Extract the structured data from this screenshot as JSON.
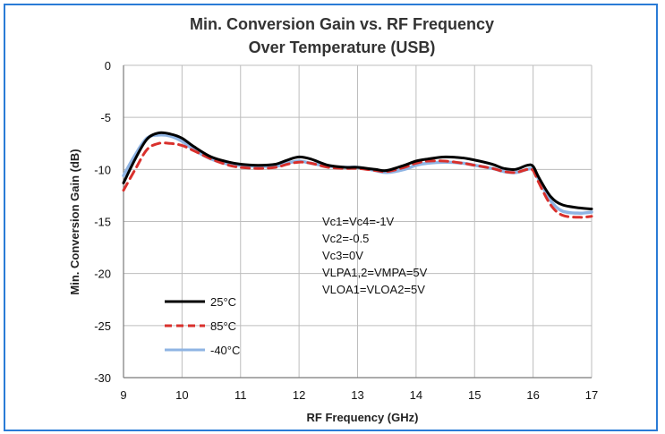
{
  "chart_data": {
    "type": "line",
    "title": [
      "Min. Conversion Gain vs. RF Frequency",
      "Over Temperature (USB)"
    ],
    "xlabel": "RF Frequency (GHz)",
    "ylabel": "Min. Conversion Gain (dB)",
    "xlim": [
      9,
      17
    ],
    "ylim": [
      -30,
      0
    ],
    "xticks": [
      "9",
      "10",
      "11",
      "12",
      "13",
      "14",
      "15",
      "16",
      "17"
    ],
    "yticks": [
      "0",
      "-5",
      "-10",
      "-15",
      "-20",
      "-25",
      "-30"
    ],
    "grid": true,
    "legend_position": "bottom-left",
    "annotations": [
      "Vc1=Vc4=-1V",
      "Vc2=-0.5",
      "Vc3=0V",
      "VLPA1,2=VMPA=5V",
      "VLOA1=VLOA2=5V"
    ],
    "series": [
      {
        "name": "25°C",
        "color": "#000000",
        "dash": "solid",
        "x": [
          9.0,
          9.2,
          9.4,
          9.6,
          9.8,
          10.0,
          10.2,
          10.5,
          10.8,
          11.0,
          11.3,
          11.6,
          11.8,
          12.0,
          12.2,
          12.5,
          12.8,
          13.0,
          13.3,
          13.5,
          13.8,
          14.0,
          14.2,
          14.5,
          14.8,
          15.0,
          15.3,
          15.5,
          15.7,
          15.9,
          16.0,
          16.1,
          16.3,
          16.5,
          16.8,
          17.0
        ],
        "y": [
          -11.3,
          -9.0,
          -7.1,
          -6.5,
          -6.6,
          -7.0,
          -7.8,
          -8.8,
          -9.3,
          -9.5,
          -9.6,
          -9.5,
          -9.1,
          -8.8,
          -9.0,
          -9.6,
          -9.8,
          -9.8,
          -10.0,
          -10.1,
          -9.6,
          -9.2,
          -9.0,
          -8.8,
          -8.9,
          -9.1,
          -9.5,
          -9.9,
          -10.0,
          -9.6,
          -9.7,
          -10.8,
          -12.6,
          -13.4,
          -13.7,
          -13.8
        ]
      },
      {
        "name": "85°C",
        "color": "#d9302c",
        "dash": "dashed",
        "x": [
          9.0,
          9.2,
          9.4,
          9.6,
          9.8,
          10.0,
          10.2,
          10.5,
          10.8,
          11.0,
          11.3,
          11.6,
          11.8,
          12.0,
          12.2,
          12.5,
          12.8,
          13.0,
          13.3,
          13.5,
          13.8,
          14.0,
          14.2,
          14.5,
          14.8,
          15.0,
          15.3,
          15.5,
          15.7,
          15.9,
          16.0,
          16.1,
          16.3,
          16.5,
          16.8,
          17.0
        ],
        "y": [
          -12.0,
          -10.0,
          -8.1,
          -7.5,
          -7.5,
          -7.7,
          -8.2,
          -9.0,
          -9.6,
          -9.8,
          -9.9,
          -9.8,
          -9.5,
          -9.3,
          -9.4,
          -9.8,
          -9.9,
          -9.9,
          -10.1,
          -10.2,
          -9.8,
          -9.4,
          -9.2,
          -9.2,
          -9.4,
          -9.6,
          -9.9,
          -10.2,
          -10.3,
          -10.0,
          -10.1,
          -11.3,
          -13.4,
          -14.4,
          -14.6,
          -14.5
        ]
      },
      {
        "name": "-40°C",
        "color": "#8fb4e3",
        "dash": "solid",
        "x": [
          9.0,
          9.2,
          9.4,
          9.6,
          9.8,
          10.0,
          10.2,
          10.5,
          10.8,
          11.0,
          11.3,
          11.6,
          11.8,
          12.0,
          12.2,
          12.5,
          12.8,
          13.0,
          13.3,
          13.5,
          13.8,
          14.0,
          14.2,
          14.5,
          14.8,
          15.0,
          15.3,
          15.5,
          15.7,
          15.9,
          16.0,
          16.1,
          16.3,
          16.5,
          16.8,
          17.0
        ],
        "y": [
          -10.6,
          -8.6,
          -7.0,
          -6.7,
          -6.8,
          -7.3,
          -8.1,
          -9.0,
          -9.5,
          -9.6,
          -9.7,
          -9.7,
          -9.4,
          -9.2,
          -9.4,
          -9.7,
          -9.8,
          -9.8,
          -10.1,
          -10.3,
          -10.0,
          -9.6,
          -9.4,
          -9.3,
          -9.4,
          -9.6,
          -9.9,
          -10.2,
          -10.3,
          -10.0,
          -10.0,
          -11.0,
          -13.0,
          -14.0,
          -14.2,
          -14.1
        ]
      }
    ]
  }
}
